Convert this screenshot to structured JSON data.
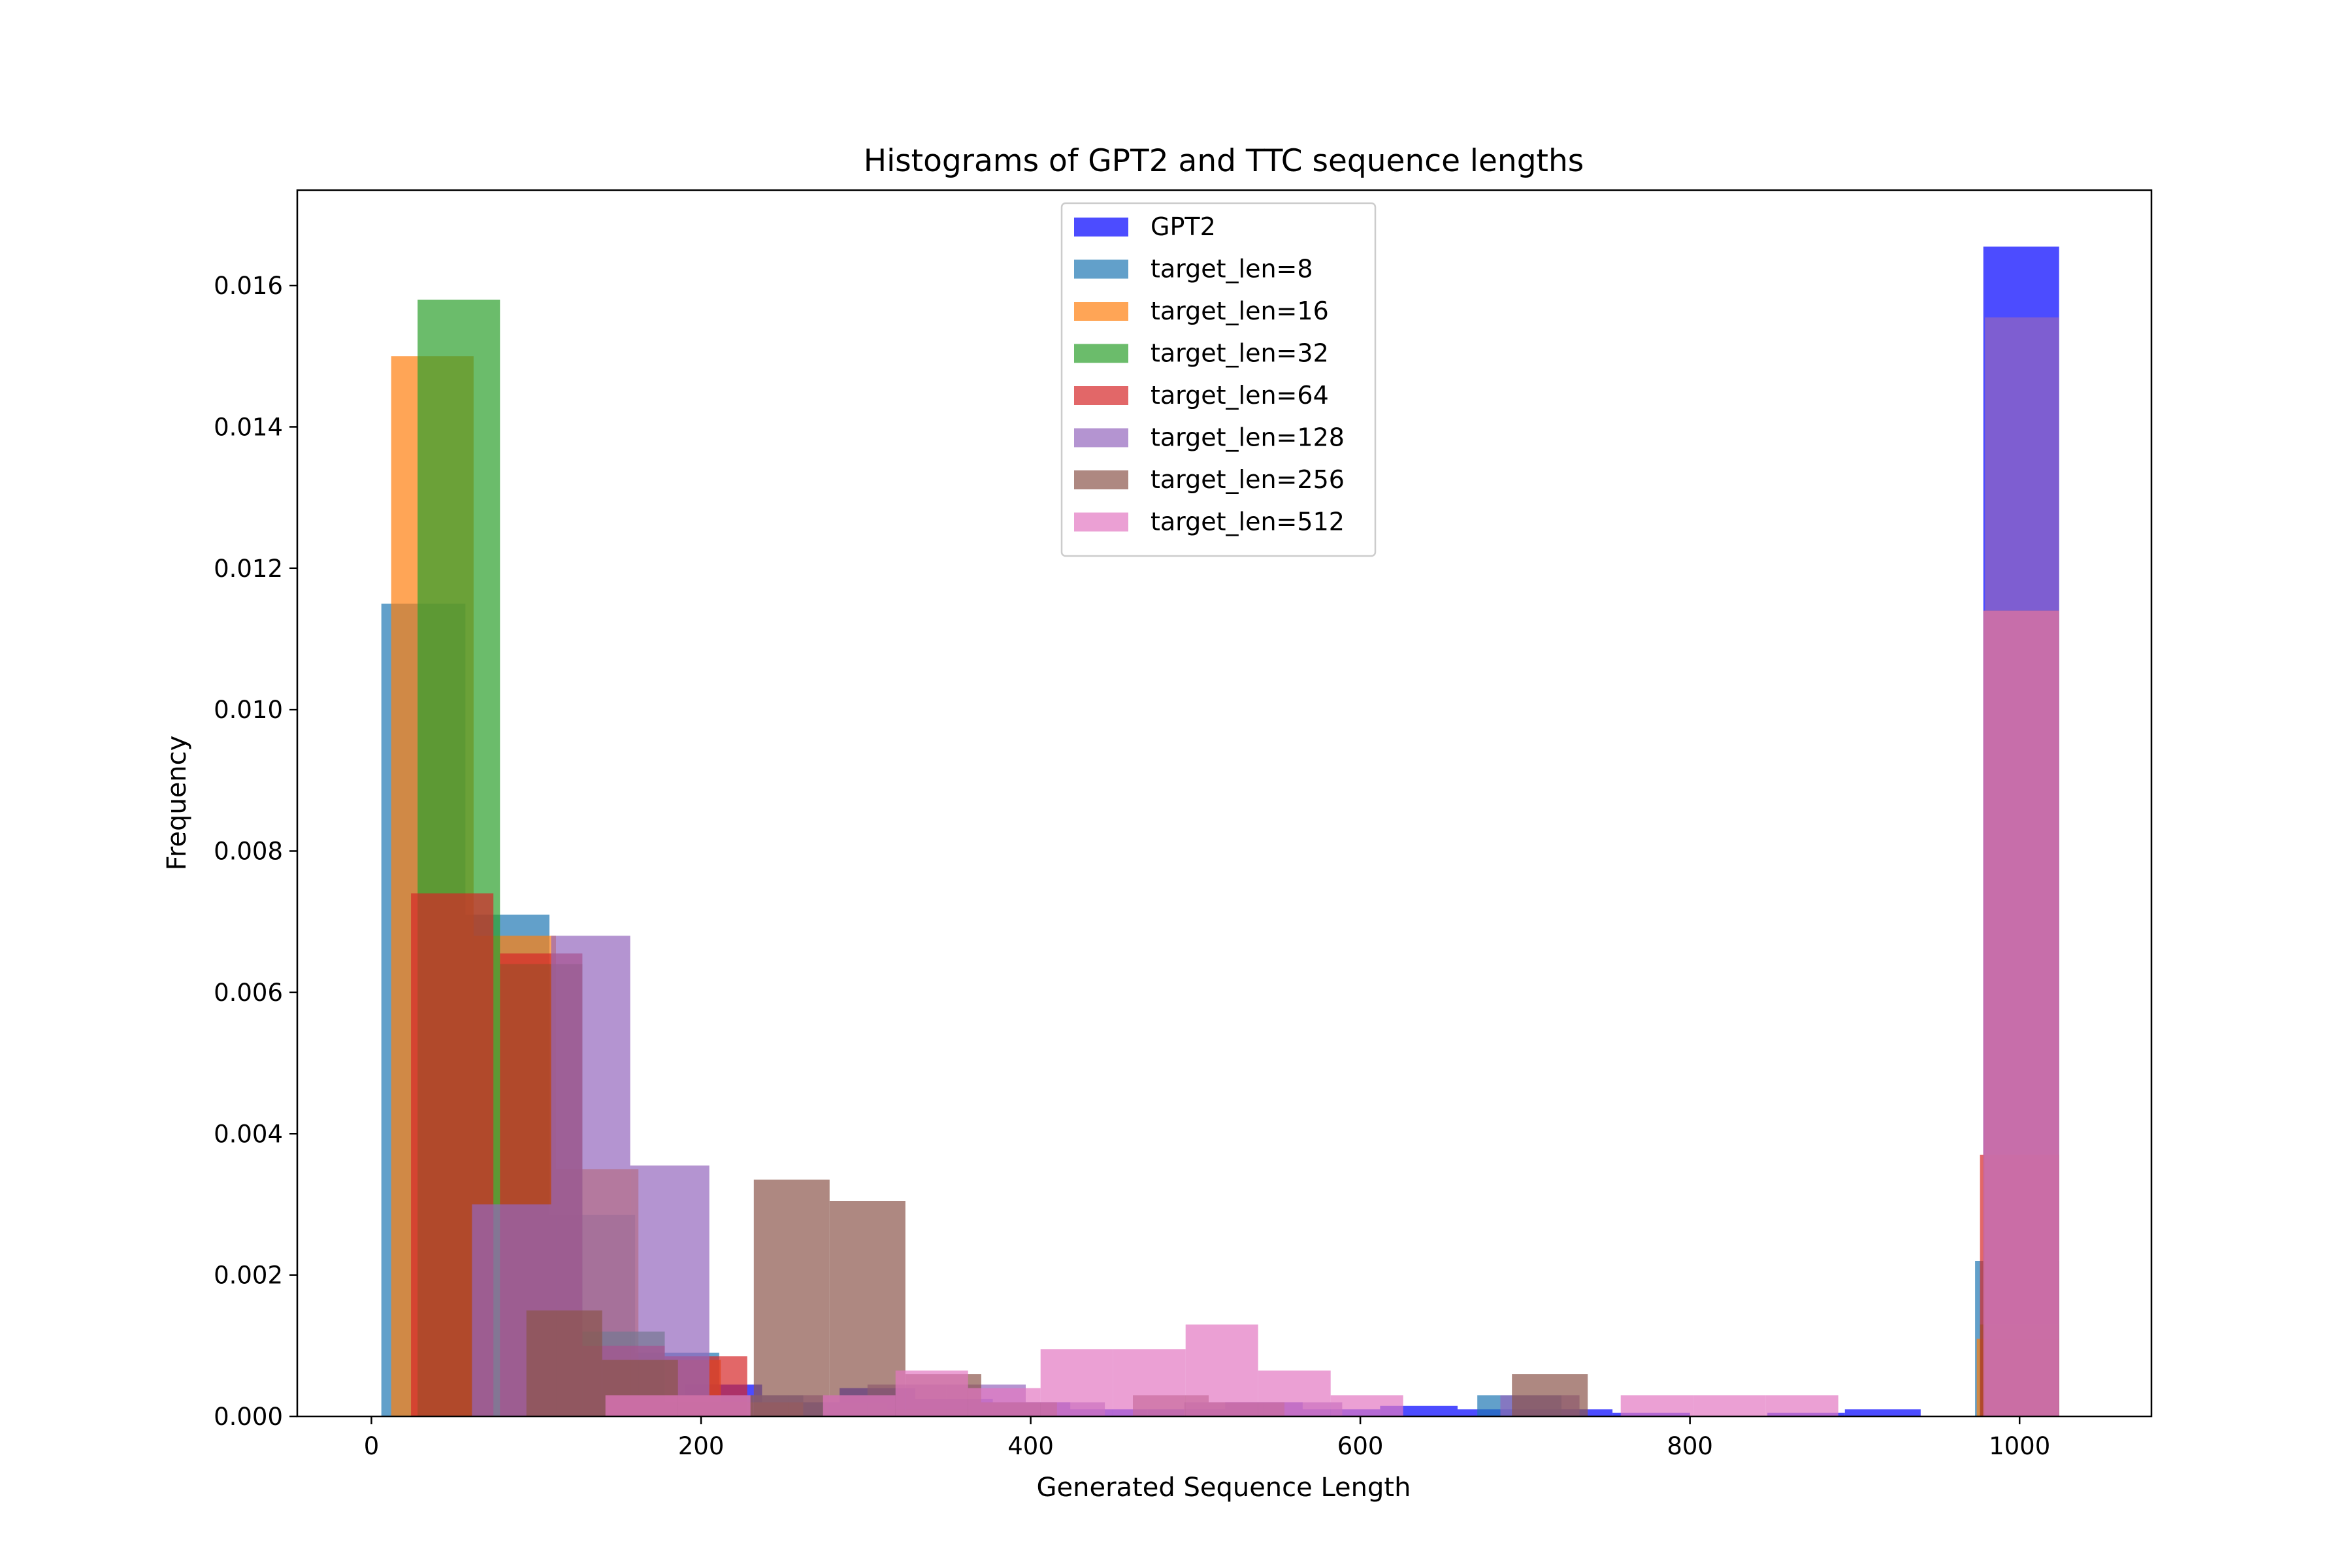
{
  "chart_data": {
    "type": "bar",
    "histogram": true,
    "title": "Histograms of GPT2 and TTC sequence lengths",
    "xlabel": "Generated Sequence Length",
    "ylabel": "Frequency",
    "xlim": [
      -45,
      1080
    ],
    "ylim": [
      0,
      0.01735
    ],
    "xticks": [
      0,
      200,
      400,
      600,
      800,
      1000
    ],
    "xtick_labels": [
      "0",
      "200",
      "400",
      "600",
      "800",
      "1000"
    ],
    "yticks": [
      0.0,
      0.002,
      0.004,
      0.006,
      0.008,
      0.01,
      0.012,
      0.014,
      0.016
    ],
    "ytick_labels": [
      "0.000",
      "0.002",
      "0.004",
      "0.006",
      "0.008",
      "0.010",
      "0.012",
      "0.014",
      "0.016"
    ],
    "grid": false,
    "legend_position": "top-center",
    "series": [
      {
        "name": "GPT2",
        "color": "#0000ff",
        "opacity": 0.7,
        "bins": [
          {
            "x0": 190,
            "x1": 237,
            "value": 0.00045
          },
          {
            "x0": 237,
            "x1": 284,
            "value": 0.0002
          },
          {
            "x0": 284,
            "x1": 330,
            "value": 0.0004
          },
          {
            "x0": 330,
            "x1": 377,
            "value": 0.00025
          },
          {
            "x0": 377,
            "x1": 424,
            "value": 0.0002
          },
          {
            "x0": 424,
            "x1": 471,
            "value": 0.0001
          },
          {
            "x0": 471,
            "x1": 518,
            "value": 0.0001
          },
          {
            "x0": 518,
            "x1": 565,
            "value": 0.0002
          },
          {
            "x0": 565,
            "x1": 612,
            "value": 0.0001
          },
          {
            "x0": 612,
            "x1": 659,
            "value": 0.00015
          },
          {
            "x0": 659,
            "x1": 706,
            "value": 0.0001
          },
          {
            "x0": 706,
            "x1": 753,
            "value": 0.0001
          },
          {
            "x0": 753,
            "x1": 800,
            "value": 5e-05
          },
          {
            "x0": 847,
            "x1": 894,
            "value": 5e-05
          },
          {
            "x0": 894,
            "x1": 940,
            "value": 0.0001
          },
          {
            "x0": 978,
            "x1": 1024,
            "value": 0.01655
          }
        ]
      },
      {
        "name": "target_len=8",
        "color": "#1f77b4",
        "opacity": 0.7,
        "bins": [
          {
            "x0": 6,
            "x1": 57,
            "value": 0.0115
          },
          {
            "x0": 57,
            "x1": 108,
            "value": 0.0071
          },
          {
            "x0": 108,
            "x1": 160,
            "value": 0.00285
          },
          {
            "x0": 160,
            "x1": 211,
            "value": 0.0009
          },
          {
            "x0": 211,
            "x1": 262,
            "value": 0.0003
          },
          {
            "x0": 262,
            "x1": 313,
            "value": 0.0002
          },
          {
            "x0": 313,
            "x1": 364,
            "value": 0.0001
          },
          {
            "x0": 671,
            "x1": 722,
            "value": 0.0003
          },
          {
            "x0": 973,
            "x1": 1024,
            "value": 0.0022
          }
        ]
      },
      {
        "name": "target_len=16",
        "color": "#ff7f0e",
        "opacity": 0.7,
        "bins": [
          {
            "x0": 12,
            "x1": 62,
            "value": 0.015
          },
          {
            "x0": 62,
            "x1": 112,
            "value": 0.0068
          },
          {
            "x0": 112,
            "x1": 162,
            "value": 0.0035
          },
          {
            "x0": 162,
            "x1": 212,
            "value": 0.0008
          },
          {
            "x0": 212,
            "x1": 262,
            "value": 0.0002
          },
          {
            "x0": 974,
            "x1": 1024,
            "value": 0.0011
          }
        ]
      },
      {
        "name": "target_len=32",
        "color": "#2ca02c",
        "opacity": 0.7,
        "bins": [
          {
            "x0": 28,
            "x1": 78,
            "value": 0.0158
          },
          {
            "x0": 78,
            "x1": 128,
            "value": 0.0064
          },
          {
            "x0": 128,
            "x1": 178,
            "value": 0.0012
          },
          {
            "x0": 178,
            "x1": 228,
            "value": 0.0002
          },
          {
            "x0": 976,
            "x1": 1024,
            "value": 0.0013
          }
        ]
      },
      {
        "name": "target_len=64",
        "color": "#d62728",
        "opacity": 0.7,
        "bins": [
          {
            "x0": 24,
            "x1": 74,
            "value": 0.0074
          },
          {
            "x0": 78,
            "x1": 128,
            "value": 0.00655
          },
          {
            "x0": 128,
            "x1": 178,
            "value": 0.001
          },
          {
            "x0": 178,
            "x1": 228,
            "value": 0.00085
          },
          {
            "x0": 976,
            "x1": 1024,
            "value": 0.0037
          }
        ]
      },
      {
        "name": "target_len=128",
        "color": "#9467bd",
        "opacity": 0.7,
        "bins": [
          {
            "x0": 61,
            "x1": 109,
            "value": 0.003
          },
          {
            "x0": 109,
            "x1": 157,
            "value": 0.0068
          },
          {
            "x0": 157,
            "x1": 205,
            "value": 0.00355
          },
          {
            "x0": 205,
            "x1": 253,
            "value": 0.0003
          },
          {
            "x0": 253,
            "x1": 301,
            "value": 0.0003
          },
          {
            "x0": 301,
            "x1": 349,
            "value": 0.00045
          },
          {
            "x0": 349,
            "x1": 397,
            "value": 0.00045
          },
          {
            "x0": 397,
            "x1": 445,
            "value": 0.0002
          },
          {
            "x0": 493,
            "x1": 541,
            "value": 0.0002
          },
          {
            "x0": 541,
            "x1": 589,
            "value": 0.0002
          },
          {
            "x0": 685,
            "x1": 733,
            "value": 0.0003
          },
          {
            "x0": 979,
            "x1": 1024,
            "value": 0.01555
          }
        ]
      },
      {
        "name": "target_len=256",
        "color": "#8c564b",
        "opacity": 0.7,
        "bins": [
          {
            "x0": 94,
            "x1": 140,
            "value": 0.0015
          },
          {
            "x0": 140,
            "x1": 186,
            "value": 0.0008
          },
          {
            "x0": 186,
            "x1": 232,
            "value": 0.0003
          },
          {
            "x0": 232,
            "x1": 278,
            "value": 0.00335
          },
          {
            "x0": 278,
            "x1": 324,
            "value": 0.00305
          },
          {
            "x0": 324,
            "x1": 370,
            "value": 0.0006
          },
          {
            "x0": 370,
            "x1": 416,
            "value": 0.0002
          },
          {
            "x0": 462,
            "x1": 508,
            "value": 0.0003
          },
          {
            "x0": 508,
            "x1": 554,
            "value": 0.0002
          },
          {
            "x0": 692,
            "x1": 738,
            "value": 0.0006
          },
          {
            "x0": 978,
            "x1": 1024,
            "value": 0.0114
          }
        ]
      },
      {
        "name": "target_len=512",
        "color": "#e377c2",
        "opacity": 0.7,
        "bins": [
          {
            "x0": 142,
            "x1": 186,
            "value": 0.0003
          },
          {
            "x0": 186,
            "x1": 230,
            "value": 0.0003
          },
          {
            "x0": 274,
            "x1": 318,
            "value": 0.0003
          },
          {
            "x0": 318,
            "x1": 362,
            "value": 0.00065
          },
          {
            "x0": 362,
            "x1": 406,
            "value": 0.0004
          },
          {
            "x0": 406,
            "x1": 450,
            "value": 0.00095
          },
          {
            "x0": 450,
            "x1": 494,
            "value": 0.00095
          },
          {
            "x0": 494,
            "x1": 538,
            "value": 0.0013
          },
          {
            "x0": 538,
            "x1": 582,
            "value": 0.00065
          },
          {
            "x0": 582,
            "x1": 626,
            "value": 0.0003
          },
          {
            "x0": 758,
            "x1": 802,
            "value": 0.0003
          },
          {
            "x0": 802,
            "x1": 846,
            "value": 0.0003
          },
          {
            "x0": 846,
            "x1": 890,
            "value": 0.0003
          },
          {
            "x0": 978,
            "x1": 1024,
            "value": 0.0114
          }
        ]
      }
    ]
  }
}
